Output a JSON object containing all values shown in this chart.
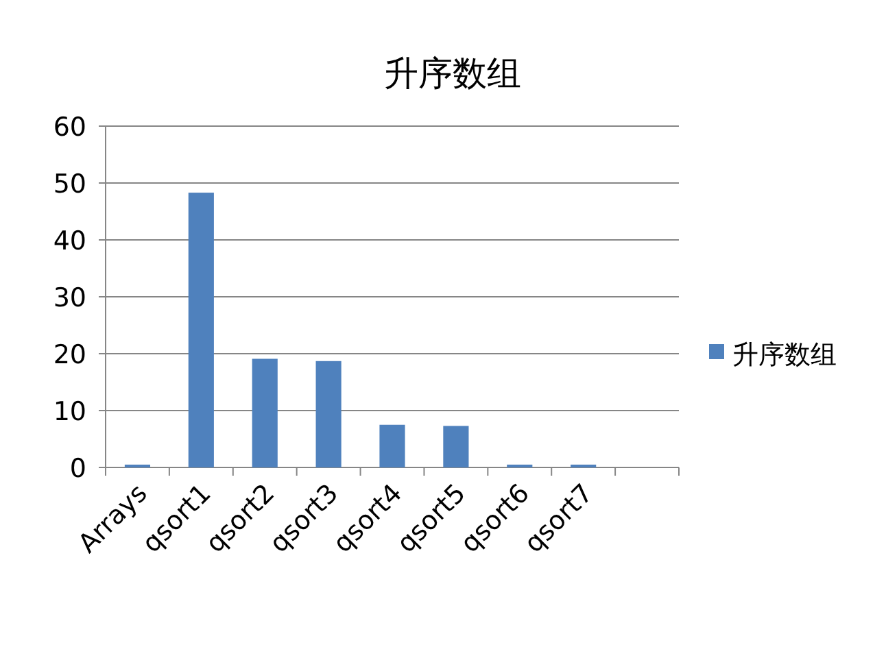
{
  "chart_data": {
    "type": "bar",
    "title": "升序数组",
    "categories": [
      "Arrays",
      "qsort1",
      "qsort2",
      "qsort3",
      "qsort4",
      "qsort5",
      "qsort6",
      "qsort7",
      null
    ],
    "series": [
      {
        "name": "升序数组",
        "color": "#4f81bd",
        "values": [
          0.5,
          48.3,
          19.1,
          18.7,
          7.5,
          7.3,
          0.5,
          0.5,
          null
        ]
      }
    ],
    "ylim": [
      0,
      60
    ],
    "yticks": [
      0,
      10,
      20,
      30,
      40,
      50,
      60
    ],
    "grid": "y",
    "legend": "right"
  }
}
